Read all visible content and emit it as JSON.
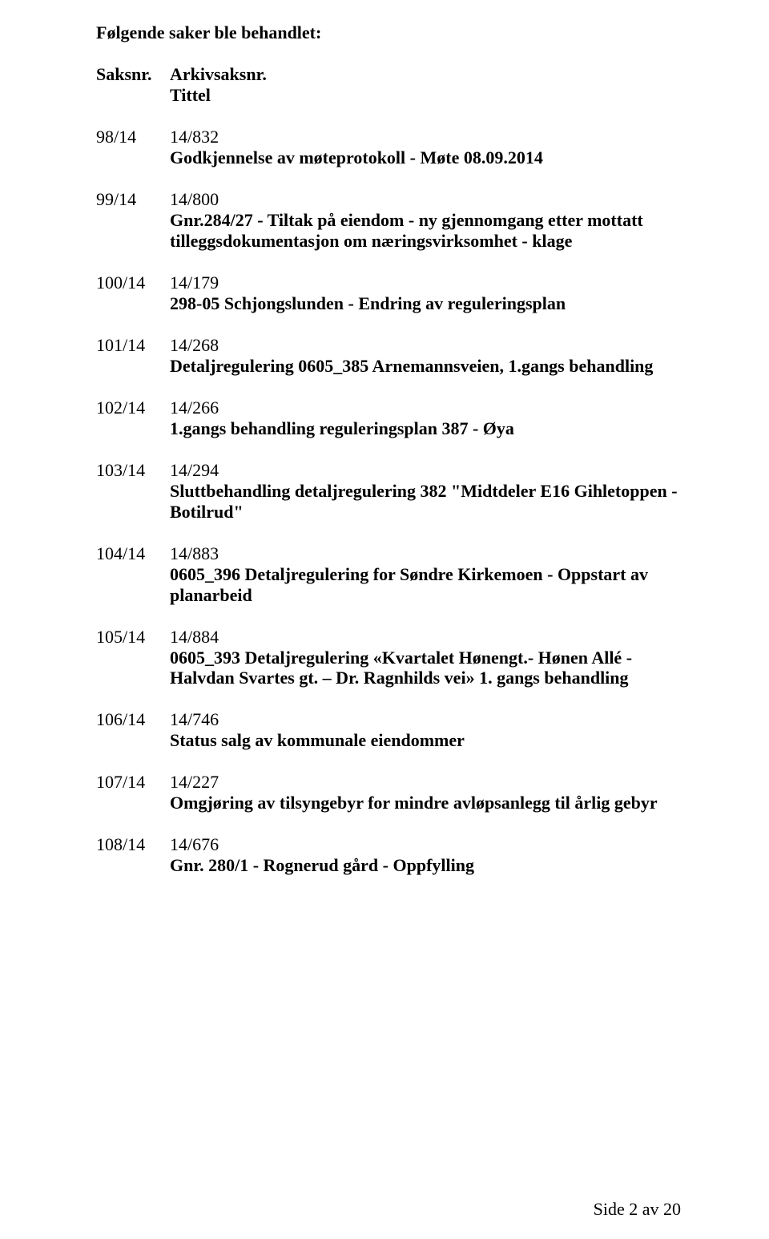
{
  "heading": "Følgende saker ble behandlet:",
  "header": {
    "col1": "Saksnr.",
    "col2_line1": "Arkivsaksnr.",
    "col2_line2": "Tittel"
  },
  "cases": [
    {
      "num": "98/14",
      "ref": "14/832",
      "title": "Godkjennelse av møteprotokoll - Møte 08.09.2014"
    },
    {
      "num": "99/14",
      "ref": "14/800",
      "title": "Gnr.284/27 - Tiltak på eiendom - ny gjennomgang etter mottatt tilleggsdokumentasjon om næringsvirksomhet - klage"
    },
    {
      "num": "100/14",
      "ref": "14/179",
      "title": "298-05 Schjongslunden - Endring av reguleringsplan"
    },
    {
      "num": "101/14",
      "ref": "14/268",
      "title": "Detaljregulering 0605_385 Arnemannsveien, 1.gangs behandling"
    },
    {
      "num": "102/14",
      "ref": "14/266",
      "title": "1.gangs behandling reguleringsplan 387 - Øya"
    },
    {
      "num": "103/14",
      "ref": "14/294",
      "title": "Sluttbehandling detaljregulering 382 \"Midtdeler E16 Gihletoppen - Botilrud\""
    },
    {
      "num": "104/14",
      "ref": "14/883",
      "title": "0605_396 Detaljregulering for Søndre Kirkemoen - Oppstart av planarbeid"
    },
    {
      "num": "105/14",
      "ref": "14/884",
      "title": "0605_393 Detaljregulering «Kvartalet Hønengt.- Hønen Allé - Halvdan Svartes gt. – Dr. Ragnhilds vei» 1. gangs behandling"
    },
    {
      "num": "106/14",
      "ref": "14/746",
      "title": "Status salg av kommunale eiendommer"
    },
    {
      "num": "107/14",
      "ref": "14/227",
      "title": "Omgjøring av tilsyngebyr for mindre avløpsanlegg til årlig gebyr"
    },
    {
      "num": "108/14",
      "ref": "14/676",
      "title": "Gnr. 280/1 - Rognerud gård - Oppfylling"
    }
  ],
  "footer": "Side 2 av 20"
}
